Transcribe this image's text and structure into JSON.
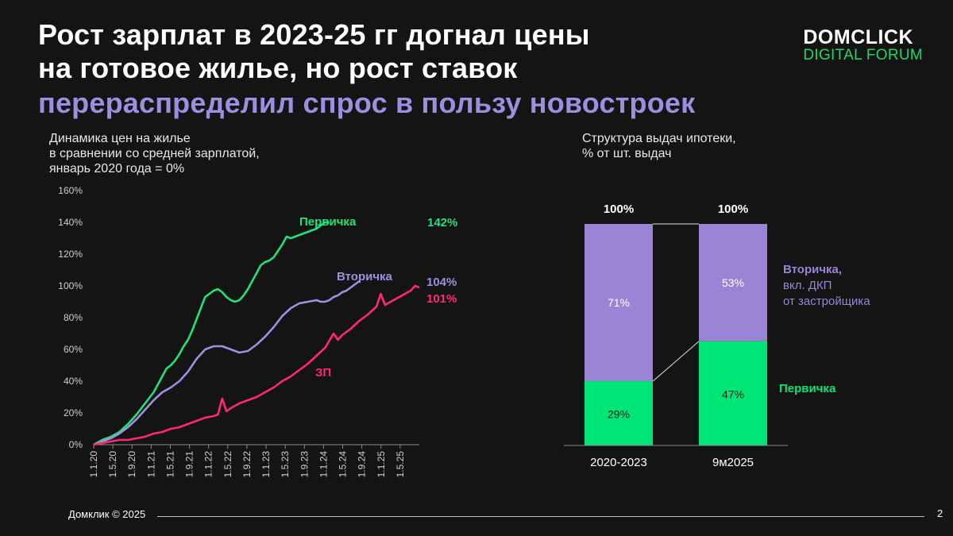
{
  "title": {
    "line1": "Рост зарплат в 2023-25 гг догнал цены",
    "line2": "на готовое жилье, но рост ставок",
    "line3": "перераспределил спрос в пользу новостроек"
  },
  "logo": {
    "top": "DOMCLICK",
    "bottom": "DIGITAL FORUM"
  },
  "colors": {
    "primary": "#22e07a",
    "secondary": "#a08ee0",
    "salary": "#ff2a6d",
    "accent_title": "#9e8ee0"
  },
  "chart_data": [
    {
      "type": "line",
      "subtitle": [
        "Динамика цен на жилье",
        "в сравнении со средней зарплатой,",
        "январь 2020 года = 0%"
      ],
      "ylim": [
        0,
        160
      ],
      "y_ticks": [
        "0%",
        "20%",
        "40%",
        "60%",
        "80%",
        "100%",
        "120%",
        "140%",
        "160%"
      ],
      "x_ticks": [
        "1.1.20",
        "1.5.20",
        "1.9.20",
        "1.1.21",
        "1.5.21",
        "1.9.21",
        "1.1.22",
        "1.5.22",
        "1.9.22",
        "1.1.23",
        "1.5.23",
        "1.9.23",
        "1.1.24",
        "1.5.24",
        "1.9.24",
        "1.1.25",
        "1.5.25"
      ],
      "series": [
        {
          "name": "Первичка",
          "end_label": "142%",
          "color": "#22e07a",
          "points": [
            [
              0,
              0
            ],
            [
              2,
              3
            ],
            [
              4,
              5
            ],
            [
              6,
              8
            ],
            [
              8,
              13
            ],
            [
              10,
              19
            ],
            [
              12,
              26
            ],
            [
              14,
              33
            ],
            [
              15,
              38
            ],
            [
              16,
              43
            ],
            [
              17,
              48
            ],
            [
              18,
              50
            ],
            [
              19,
              53
            ],
            [
              20,
              57
            ],
            [
              21,
              62
            ],
            [
              22,
              66
            ],
            [
              23,
              72
            ],
            [
              24,
              79
            ],
            [
              25,
              86
            ],
            [
              26,
              93
            ],
            [
              27,
              95
            ],
            [
              28,
              97
            ],
            [
              29,
              98
            ],
            [
              30,
              96
            ],
            [
              31,
              93
            ],
            [
              32,
              91
            ],
            [
              33,
              90
            ],
            [
              34,
              91
            ],
            [
              35,
              94
            ],
            [
              36,
              98
            ],
            [
              37,
              103
            ],
            [
              38,
              108
            ],
            [
              39,
              113
            ],
            [
              40,
              115
            ],
            [
              41,
              116
            ],
            [
              42,
              118
            ],
            [
              43,
              122
            ],
            [
              44,
              126
            ],
            [
              45,
              131
            ],
            [
              46,
              130
            ],
            [
              47,
              131
            ],
            [
              48,
              132
            ],
            [
              49,
              133
            ],
            [
              50,
              134
            ],
            [
              51,
              135
            ],
            [
              52,
              136
            ],
            [
              53,
              138
            ],
            [
              54,
              140
            ],
            [
              55,
              140
            ]
          ]
        },
        {
          "name": "Вторичка",
          "end_label": "104%",
          "color": "#a08ee0",
          "points": [
            [
              0,
              0
            ],
            [
              2,
              2
            ],
            [
              4,
              4
            ],
            [
              6,
              7
            ],
            [
              8,
              11
            ],
            [
              10,
              16
            ],
            [
              12,
              22
            ],
            [
              14,
              28
            ],
            [
              16,
              33
            ],
            [
              18,
              36
            ],
            [
              20,
              40
            ],
            [
              22,
              46
            ],
            [
              24,
              54
            ],
            [
              26,
              60
            ],
            [
              28,
              62
            ],
            [
              30,
              62
            ],
            [
              32,
              60
            ],
            [
              34,
              58
            ],
            [
              36,
              59
            ],
            [
              38,
              63
            ],
            [
              40,
              68
            ],
            [
              42,
              74
            ],
            [
              44,
              81
            ],
            [
              46,
              86
            ],
            [
              48,
              89
            ],
            [
              50,
              90
            ],
            [
              52,
              91
            ],
            [
              53,
              90
            ],
            [
              54,
              90
            ],
            [
              55,
              91
            ],
            [
              56,
              93
            ],
            [
              57,
              94
            ],
            [
              58,
              96
            ],
            [
              59,
              97
            ],
            [
              60,
              99
            ],
            [
              61,
              101
            ],
            [
              62,
              103
            ]
          ]
        },
        {
          "name": "ЗП",
          "end_label": "101%",
          "color": "#ff2a6d",
          "points": [
            [
              0,
              0
            ],
            [
              2,
              1
            ],
            [
              4,
              2
            ],
            [
              6,
              3
            ],
            [
              8,
              3
            ],
            [
              10,
              4
            ],
            [
              12,
              5
            ],
            [
              14,
              7
            ],
            [
              16,
              8
            ],
            [
              18,
              10
            ],
            [
              20,
              11
            ],
            [
              22,
              13
            ],
            [
              24,
              15
            ],
            [
              26,
              17
            ],
            [
              28,
              18
            ],
            [
              29,
              19
            ],
            [
              30,
              29
            ],
            [
              31,
              21
            ],
            [
              32,
              23
            ],
            [
              34,
              26
            ],
            [
              36,
              28
            ],
            [
              38,
              30
            ],
            [
              40,
              33
            ],
            [
              42,
              36
            ],
            [
              44,
              40
            ],
            [
              46,
              43
            ],
            [
              48,
              47
            ],
            [
              50,
              51
            ],
            [
              52,
              56
            ],
            [
              54,
              61
            ],
            [
              56,
              70
            ],
            [
              57,
              66
            ],
            [
              58,
              69
            ],
            [
              60,
              73
            ],
            [
              62,
              78
            ],
            [
              64,
              82
            ],
            [
              66,
              87
            ],
            [
              67,
              95
            ],
            [
              68,
              88
            ],
            [
              70,
              91
            ],
            [
              72,
              94
            ],
            [
              74,
              97
            ],
            [
              75,
              100
            ],
            [
              76,
              99
            ]
          ]
        }
      ]
    },
    {
      "type": "bar",
      "subtitle": [
        "Структура выдач ипотеки,",
        "% от шт. выдач"
      ],
      "categories": [
        "2020-2023",
        "9м2025"
      ],
      "totals": [
        "100%",
        "100%"
      ],
      "ylim": [
        0,
        100
      ],
      "series": [
        {
          "name": "Первичка",
          "values": [
            29,
            47
          ],
          "labels": [
            "29%",
            "47%"
          ],
          "color": "#00e676"
        },
        {
          "name": "Вторичка, вкл. ДКП от застройщика",
          "values": [
            71,
            53
          ],
          "labels": [
            "71%",
            "53%"
          ],
          "color": "#9a84d6"
        }
      ],
      "legend": {
        "secondary": [
          "Вторичка,",
          "вкл. ДКП",
          "от застройщика"
        ],
        "primary": "Первичка"
      }
    }
  ],
  "footer": {
    "copyright": "Домклик © 2025",
    "page": "2"
  }
}
